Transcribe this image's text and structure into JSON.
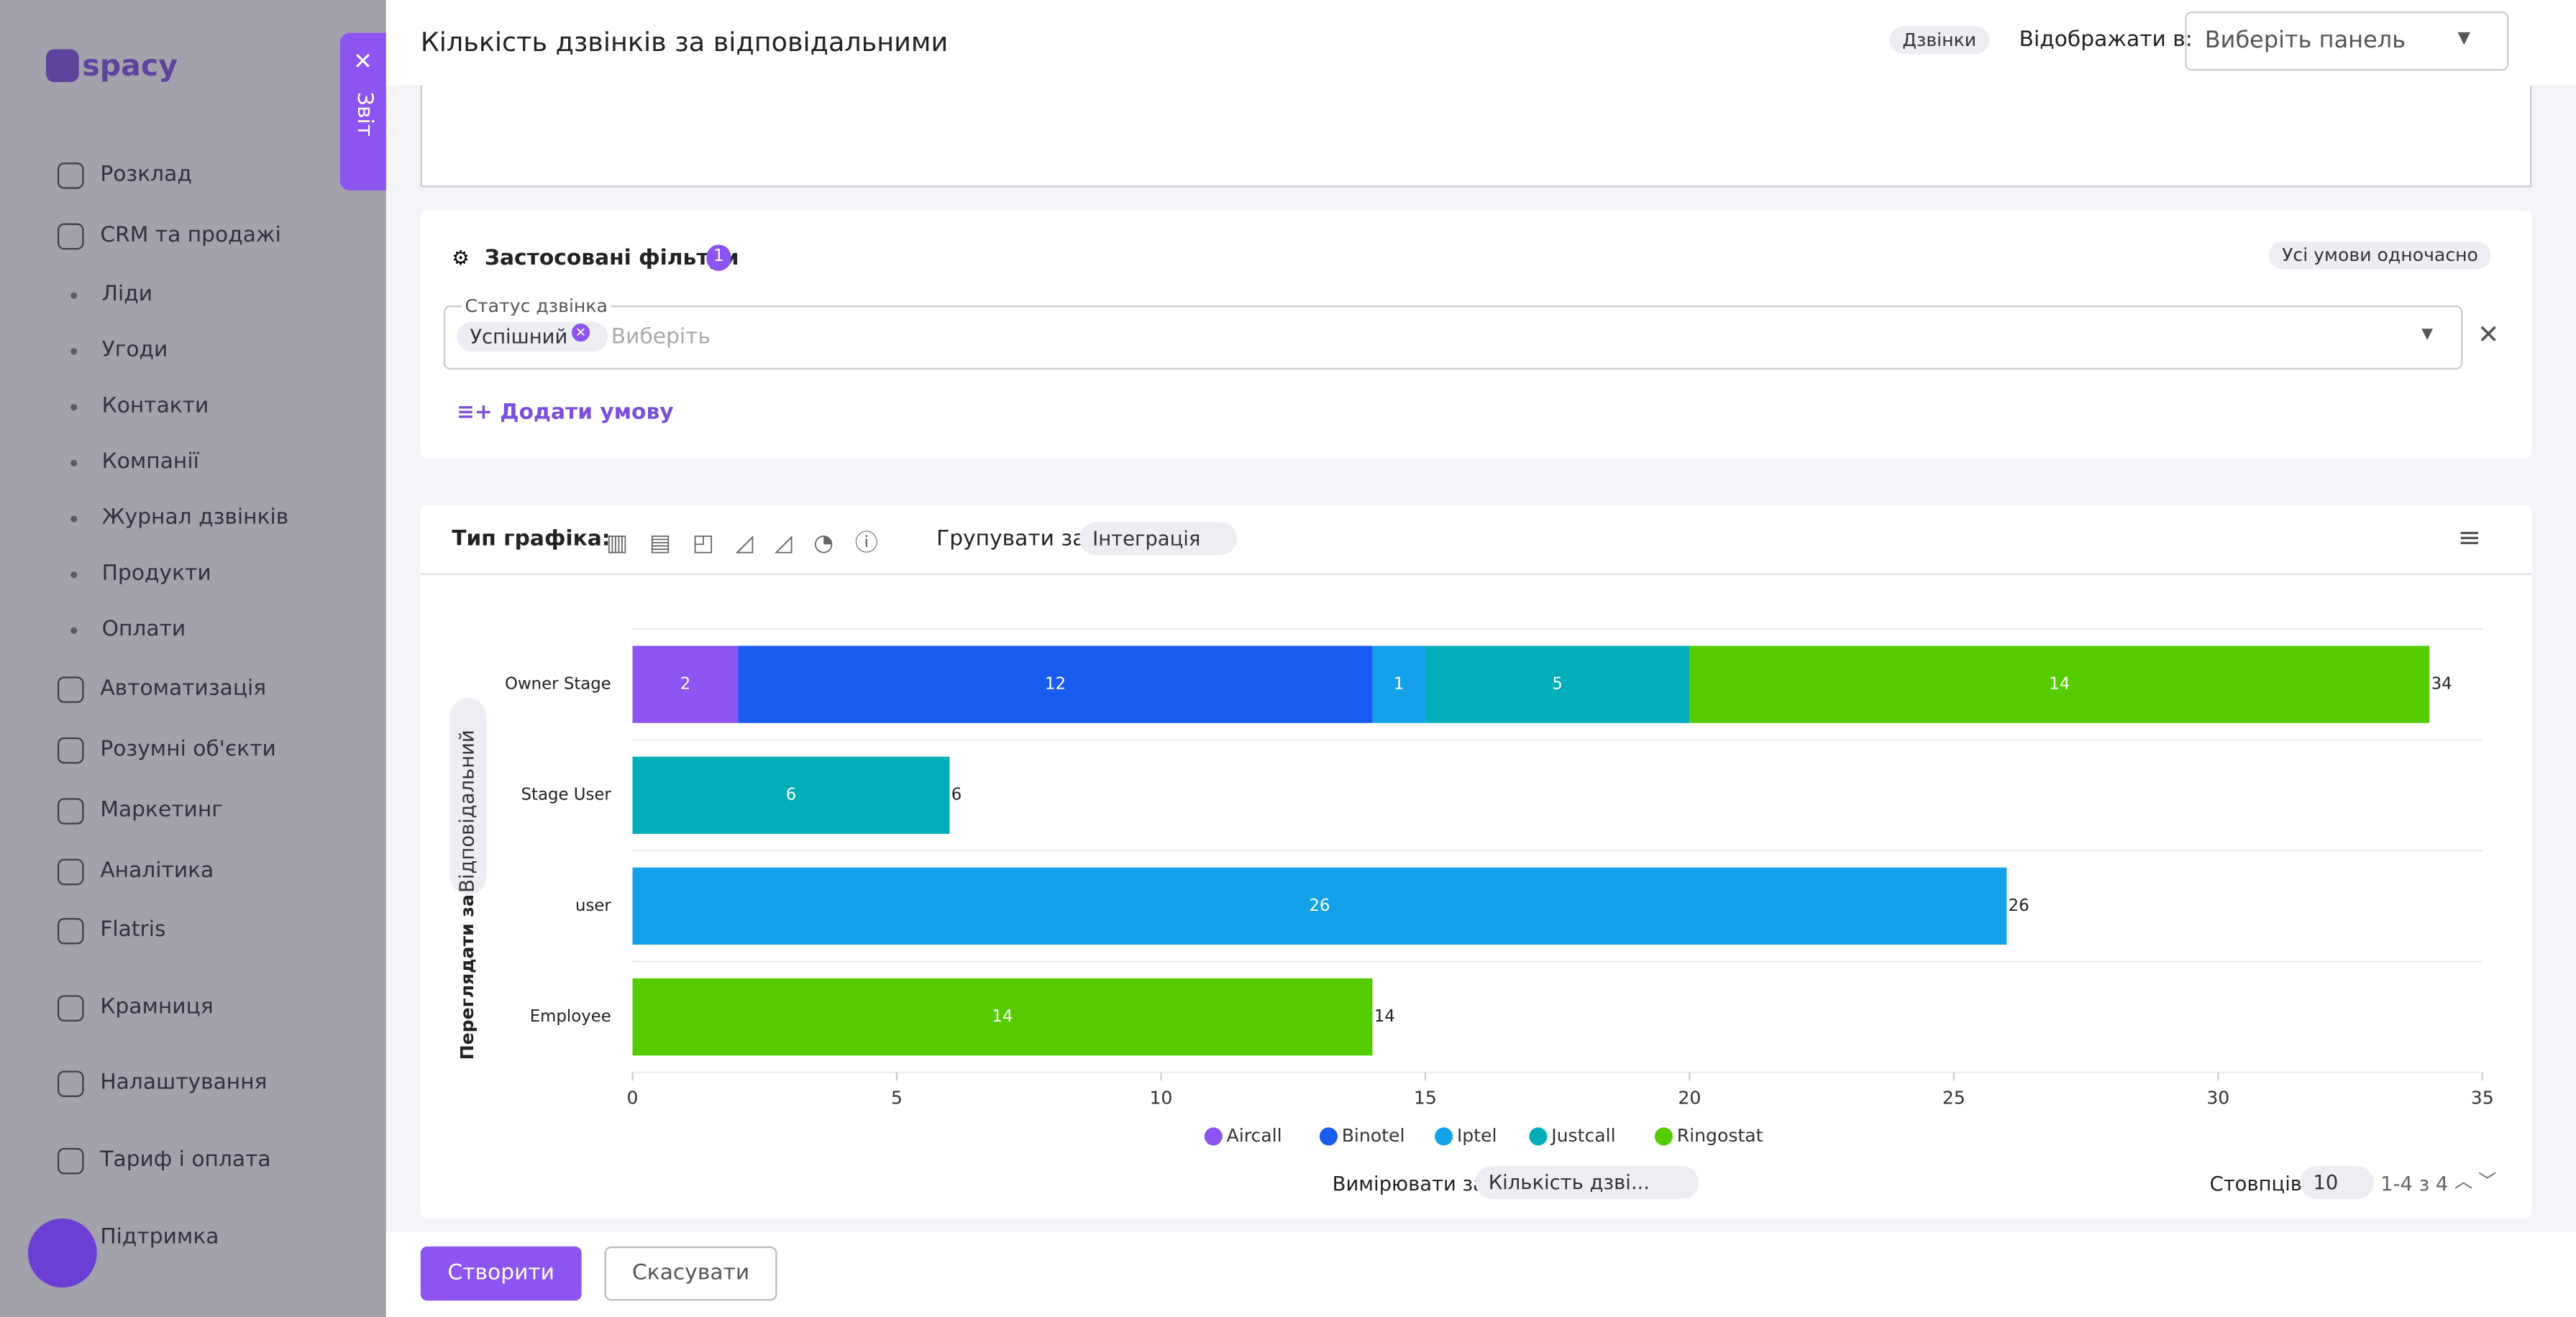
{
  "sidebar": {
    "logo": "spacy",
    "tab": "Звіт",
    "items": [
      "Розклад",
      "CRM та продажі",
      "Ліди",
      "Угоди",
      "Контакти",
      "Компанії",
      "Журнал дзвінків",
      "Продукти",
      "Оплати",
      "Автоматизація",
      "Розумні об'єкти",
      "Маркетинг",
      "Аналітика",
      "Flatris",
      "Крамниця",
      "Налаштування",
      "Тариф і оплата",
      "Підтримка"
    ]
  },
  "header": {
    "title": "Кількість дзвінків за відповідальними",
    "tag": "Дзвінки",
    "display_label": "Відображати в:",
    "select_placeholder": "Виберіть панель"
  },
  "filters": {
    "title": "Застосовані фільтри",
    "count": 1,
    "mode": "Усі умови одночасно",
    "field_label": "Статус дзвінка",
    "chip": "Успішний",
    "placeholder": "Виберіть",
    "add": "Додати умову"
  },
  "toolbar": {
    "type_label": "Тип графіка:",
    "group_label": "Групувати за",
    "group_value": "Інтеграція",
    "view_label": "Переглядати за",
    "view_value": "Відповідальний",
    "measure_label": "Вимірювати за",
    "measure_value": "Кількість дзві...",
    "columns_label": "Стовпців",
    "columns_value": 10,
    "pagination": "1-4 з 4"
  },
  "footer": {
    "create": "Створити",
    "cancel": "Скасувати"
  },
  "chart_data": {
    "type": "hbar_stacked",
    "categories": [
      "Owner Stage",
      "Stage User",
      "user",
      "Employee"
    ],
    "series": [
      {
        "name": "Aircall",
        "color": "#8c55f2",
        "values": [
          2,
          null,
          null,
          null
        ]
      },
      {
        "name": "Binotel",
        "color": "#1a5cf0",
        "values": [
          12,
          null,
          null,
          null
        ]
      },
      {
        "name": "Iptel",
        "color": "#13a2ea",
        "values": [
          1,
          null,
          26,
          null
        ]
      },
      {
        "name": "Justcall",
        "color": "#00adb8",
        "values": [
          5,
          6,
          null,
          null
        ]
      },
      {
        "name": "Ringostat",
        "color": "#55cc00",
        "values": [
          14,
          null,
          null,
          14
        ]
      }
    ],
    "totals": [
      34,
      6,
      26,
      14
    ],
    "xlim": [
      0,
      35
    ],
    "xticks": [
      0,
      5,
      10,
      15,
      20,
      25,
      30,
      35
    ],
    "grid": true
  }
}
